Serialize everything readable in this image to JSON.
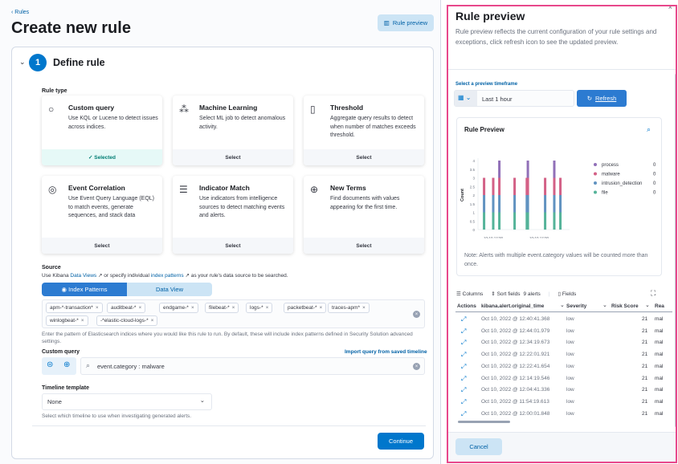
{
  "left": {
    "back_link": "‹ Rules",
    "title": "Create new rule",
    "rule_preview_button": "Rule preview",
    "step_number": "1",
    "step_title": "Define rule",
    "rule_type_label": "Rule type",
    "rule_types": [
      {
        "title": "Custom query",
        "desc": "Use KQL or Lucene to detect issues across indices.",
        "footer": "✓  Selected",
        "icon": "search-icon",
        "selected": true
      },
      {
        "title": "Machine Learning",
        "desc": "Select ML job to detect anomalous activity.",
        "footer": "Select",
        "icon": "machine-learning-icon"
      },
      {
        "title": "Threshold",
        "desc": "Aggregate query results to detect when number of matches exceeds threshold.",
        "footer": "Select",
        "icon": "threshold-icon"
      },
      {
        "title": "Event Correlation",
        "desc": "Use Event Query Language (EQL) to match events, generate sequences, and stack data",
        "footer": "Select",
        "icon": "eql-icon"
      },
      {
        "title": "Indicator Match",
        "desc": "Use indicators from intelligence sources to detect matching events and alerts.",
        "footer": "Select",
        "icon": "list-icon"
      },
      {
        "title": "New Terms",
        "desc": "Find documents with values appearing for the first time.",
        "footer": "Select",
        "icon": "zoom-in-icon"
      }
    ],
    "source_label": "Source",
    "source_hint_1": "Use Kibana ",
    "source_link_1": "Data Views",
    "source_hint_2": " or specify individual ",
    "source_link_2": "index patterns",
    "source_hint_3": " as your rule's data source to be searched.",
    "tab_index_patterns": "Index Patterns",
    "tab_data_view": "Data View",
    "index_patterns": [
      "apm-*-transaction*",
      "auditbeat-*",
      "endgame-*",
      "filebeat-*",
      "logs-*",
      "packetbeat-*",
      "traces-apm*",
      "winlogbeat-*",
      "-*elastic-cloud-logs-*"
    ],
    "index_hint": "Enter the pattern of Elasticsearch indices where you would like this rule to run. By default, these will include index patterns defined in Security Solution advanced settings.",
    "custom_query_label": "Custom query",
    "import_query_link": "Import query from saved timeline",
    "query_value": "event.category : malware",
    "timeline_label": "Timeline template",
    "timeline_value": "None",
    "timeline_hint": "Select which timeline to use when investigating generated alerts.",
    "continue_button": "Continue"
  },
  "preview": {
    "title": "Rule preview",
    "description": "Rule preview reflects the current configuration of your rule settings and exceptions, click refresh icon to see the updated preview.",
    "timeframe_label": "Select a preview timeframe",
    "timeframe_value": "Last 1 hour",
    "refresh_button": "Refresh",
    "chart_title": "Rule Preview",
    "note": "Note: Alerts with multiple event.category values will be counted more than once.",
    "toolbar": {
      "columns": "Columns",
      "sort_fields": "Sort fields",
      "alerts_count": "9 alerts",
      "fields": "Fields"
    },
    "columns": [
      "Actions",
      "kibana.alert.original_time",
      "Severity",
      "Risk Score",
      "Rea"
    ],
    "rows": [
      {
        "time": "Oct 10, 2022 @ 12:40:41.368",
        "severity": "low",
        "risk": "21",
        "reason": "mal"
      },
      {
        "time": "Oct 10, 2022 @ 12:44:01.979",
        "severity": "low",
        "risk": "21",
        "reason": "mal"
      },
      {
        "time": "Oct 10, 2022 @ 12:34:19.673",
        "severity": "low",
        "risk": "21",
        "reason": "mal"
      },
      {
        "time": "Oct 10, 2022 @ 12:22:01.921",
        "severity": "low",
        "risk": "21",
        "reason": "mal"
      },
      {
        "time": "Oct 10, 2022 @ 12:22:41.654",
        "severity": "low",
        "risk": "21",
        "reason": "mal"
      },
      {
        "time": "Oct 10, 2022 @ 12:14:19.546",
        "severity": "low",
        "risk": "21",
        "reason": "mal"
      },
      {
        "time": "Oct 10, 2022 @ 12:04:41.336",
        "severity": "low",
        "risk": "21",
        "reason": "mal"
      },
      {
        "time": "Oct 10, 2022 @ 11:54:19.613",
        "severity": "low",
        "risk": "21",
        "reason": "mal"
      },
      {
        "time": "Oct 10, 2022 @ 12:00:01.848",
        "severity": "low",
        "risk": "21",
        "reason": "mal"
      }
    ],
    "cancel_button": "Cancel"
  },
  "chart_data": {
    "type": "bar",
    "stacked": true,
    "ylabel": "Count",
    "ylim": [
      0,
      4
    ],
    "yticks": [
      "0",
      "0.5",
      "1",
      "1.5",
      "2",
      "2.5",
      "3",
      "3.5",
      "4"
    ],
    "xtick_labels": [
      {
        "label": "10-10 12:00",
        "x": "12:00"
      },
      {
        "label": "10-10 12:00",
        "x": "12:30"
      }
    ],
    "x": [
      "11:54",
      "12:00",
      "12:04",
      "12:14",
      "12:22:01",
      "12:22:41",
      "12:34",
      "12:40",
      "12:44"
    ],
    "series": [
      {
        "name": "file",
        "color": "#54b399",
        "values": [
          1,
          1,
          1,
          1,
          1,
          1,
          1,
          1,
          1
        ],
        "legend_value": "0"
      },
      {
        "name": "intrusion_detection",
        "color": "#6092c0",
        "values": [
          1,
          1,
          1,
          1,
          1,
          1,
          1,
          1,
          1
        ],
        "legend_value": "0"
      },
      {
        "name": "malware",
        "color": "#d36086",
        "values": [
          1,
          1,
          1,
          1,
          1,
          1,
          1,
          1,
          1
        ],
        "legend_value": "0"
      },
      {
        "name": "process",
        "color": "#9170b8",
        "values": [
          0,
          0,
          1,
          0,
          0,
          1,
          0,
          1,
          0
        ],
        "legend_value": "0"
      }
    ],
    "legend_position": "right",
    "grid": false
  }
}
